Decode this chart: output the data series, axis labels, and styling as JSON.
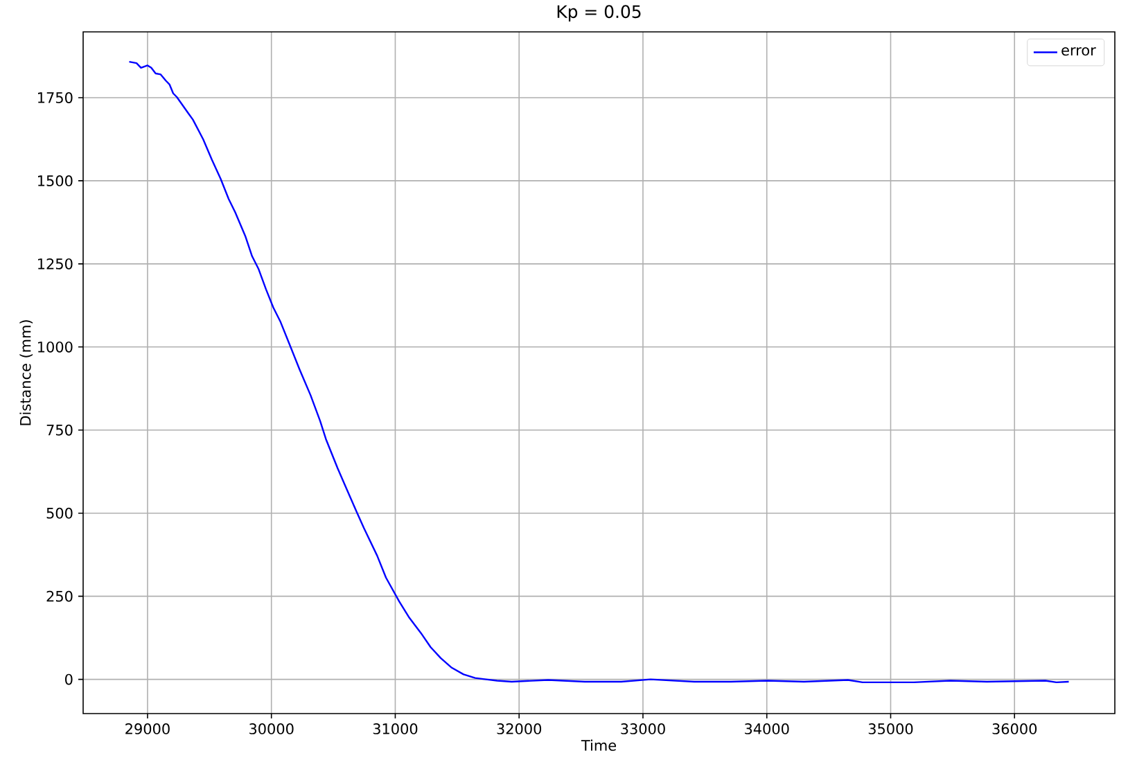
{
  "chart_data": {
    "type": "line",
    "title": "Kp = 0.05",
    "xlabel": "Time",
    "ylabel": "Distance (mm)",
    "xlim": [
      28480,
      36810
    ],
    "ylim": [
      -103,
      1948
    ],
    "xticks": [
      29000,
      30000,
      31000,
      32000,
      33000,
      34000,
      35000,
      36000
    ],
    "yticks": [
      0,
      250,
      500,
      750,
      1000,
      1250,
      1500,
      1750
    ],
    "grid": true,
    "legend": "top right",
    "line_style": "solid",
    "marker": "none",
    "series": [
      {
        "name": "error",
        "color": "#0000ff",
        "x": [
          28852,
          28911,
          28947,
          29000,
          29030,
          29065,
          29106,
          29148,
          29177,
          29207,
          29236,
          29331,
          29366,
          29449,
          29520,
          29590,
          29655,
          29708,
          29791,
          29844,
          29897,
          29956,
          30015,
          30074,
          30157,
          30228,
          30316,
          30393,
          30440,
          30535,
          30606,
          30688,
          30747,
          30854,
          30925,
          31031,
          31114,
          31208,
          31285,
          31367,
          31456,
          31551,
          31645,
          31733,
          31822,
          31940,
          32235,
          32530,
          32825,
          33061,
          33414,
          33710,
          34005,
          34300,
          34655,
          34773,
          35187,
          35482,
          35777,
          36249,
          36338,
          36438
        ],
        "values": [
          1858,
          1854,
          1840,
          1847,
          1840,
          1823,
          1820,
          1801,
          1790,
          1763,
          1752,
          1702,
          1684,
          1625,
          1563,
          1506,
          1445,
          1405,
          1332,
          1273,
          1234,
          1174,
          1119,
          1075,
          998,
          932,
          855,
          778,
          723,
          635,
          574,
          504,
          455,
          372,
          306,
          235,
          185,
          139,
          97,
          64,
          35,
          15,
          4,
          0,
          -4,
          -7,
          -2,
          -7,
          -7,
          0,
          -7,
          -7,
          -4,
          -7,
          -2,
          -9,
          -9,
          -4,
          -7,
          -4,
          -9,
          -7
        ]
      }
    ]
  }
}
